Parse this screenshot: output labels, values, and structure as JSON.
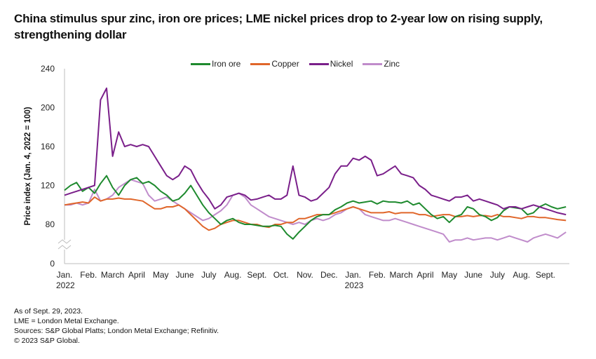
{
  "title": "China stimulus spur zinc, iron ore prices; LME nickel prices drop to 2-year low on rising supply, strengthening dollar",
  "footnotes": [
    "As of Sept. 29, 2023.",
    "LME = London Metal Exchange.",
    "Sources: S&P Global Platts; London Metal Exchange; Refinitiv.",
    "© 2023 S&P Global."
  ],
  "chart_data": {
    "type": "line",
    "title": "China stimulus spur zinc, iron ore prices; LME nickel prices drop to 2-year low on rising supply, strengthening dollar",
    "xlabel": "",
    "ylabel": "Price index (Jan. 4, 2022 = 100)",
    "y_ticks": [
      0,
      80,
      120,
      160,
      200,
      240
    ],
    "ylim": [
      0,
      240
    ],
    "y_axis_break": "between 0 and 80",
    "x_tick_labels": [
      {
        "label": "Jan.",
        "sub": "2022"
      },
      {
        "label": "Feb.",
        "sub": ""
      },
      {
        "label": "March",
        "sub": ""
      },
      {
        "label": "April",
        "sub": ""
      },
      {
        "label": "May",
        "sub": ""
      },
      {
        "label": "June",
        "sub": ""
      },
      {
        "label": "July",
        "sub": ""
      },
      {
        "label": "Aug.",
        "sub": ""
      },
      {
        "label": "Sept.",
        "sub": ""
      },
      {
        "label": "Oct.",
        "sub": ""
      },
      {
        "label": "Nov.",
        "sub": ""
      },
      {
        "label": "Dec.",
        "sub": ""
      },
      {
        "label": "Jan.",
        "sub": "2023"
      },
      {
        "label": "Feb.",
        "sub": ""
      },
      {
        "label": "March",
        "sub": ""
      },
      {
        "label": "April",
        "sub": ""
      },
      {
        "label": "May",
        "sub": ""
      },
      {
        "label": "June",
        "sub": ""
      },
      {
        "label": "July",
        "sub": ""
      },
      {
        "label": "Aug.",
        "sub": ""
      },
      {
        "label": "Sept.",
        "sub": ""
      }
    ],
    "x_months": 21,
    "x": [
      0,
      0.25,
      0.5,
      0.75,
      1,
      1.25,
      1.5,
      1.75,
      2,
      2.25,
      2.5,
      2.75,
      3,
      3.25,
      3.5,
      3.75,
      4,
      4.25,
      4.5,
      4.75,
      5,
      5.25,
      5.5,
      5.75,
      6,
      6.25,
      6.5,
      6.75,
      7,
      7.25,
      7.5,
      7.75,
      8,
      8.25,
      8.5,
      8.75,
      9,
      9.25,
      9.5,
      9.75,
      10,
      10.25,
      10.5,
      10.75,
      11,
      11.25,
      11.5,
      11.75,
      12,
      12.25,
      12.5,
      12.75,
      13,
      13.25,
      13.5,
      13.75,
      14,
      14.25,
      14.5,
      14.75,
      15,
      15.25,
      15.5,
      15.75,
      16,
      16.25,
      16.5,
      16.75,
      17,
      17.25,
      17.5,
      17.75,
      18,
      18.25,
      18.5,
      18.75,
      19,
      19.25,
      19.5,
      19.75,
      20,
      20.25,
      20.5,
      20.85
    ],
    "legend": [
      "Iron ore",
      "Copper",
      "Nickel",
      "Zinc"
    ],
    "legend_position": "top-center",
    "series": [
      {
        "name": "Iron ore",
        "color": "#1e8a2e",
        "values": [
          115,
          120,
          123,
          114,
          118,
          112,
          122,
          130,
          118,
          110,
          120,
          126,
          128,
          122,
          124,
          120,
          114,
          110,
          104,
          106,
          112,
          120,
          110,
          100,
          92,
          86,
          80,
          84,
          86,
          82,
          80,
          80,
          79,
          78,
          78,
          79,
          78,
          70,
          65,
          72,
          78,
          84,
          88,
          90,
          90,
          95,
          98,
          102,
          104,
          102,
          103,
          104,
          101,
          104,
          103,
          103,
          102,
          104,
          100,
          102,
          96,
          90,
          86,
          88,
          82,
          88,
          90,
          98,
          96,
          90,
          88,
          84,
          87,
          94,
          98,
          97,
          96,
          90,
          92,
          98,
          101,
          98,
          96,
          98
        ]
      },
      {
        "name": "Copper",
        "color": "#e0662a",
        "values": [
          100,
          101,
          102,
          103,
          102,
          108,
          104,
          106,
          106,
          107,
          106,
          106,
          105,
          104,
          100,
          96,
          96,
          98,
          98,
          100,
          96,
          90,
          84,
          78,
          74,
          76,
          80,
          82,
          84,
          84,
          82,
          80,
          80,
          78,
          77,
          80,
          80,
          82,
          82,
          86,
          86,
          88,
          90,
          90,
          90,
          92,
          94,
          96,
          98,
          96,
          94,
          92,
          92,
          92,
          93,
          91,
          92,
          92,
          92,
          90,
          90,
          88,
          89,
          90,
          90,
          88,
          88,
          89,
          88,
          89,
          89,
          88,
          90,
          88,
          88,
          87,
          86,
          88,
          88,
          87,
          87,
          86,
          85,
          84
        ]
      },
      {
        "name": "Nickel",
        "color": "#7a1f8a",
        "values": [
          110,
          112,
          114,
          116,
          118,
          120,
          208,
          220,
          150,
          175,
          160,
          162,
          160,
          162,
          160,
          150,
          140,
          130,
          126,
          130,
          140,
          136,
          124,
          114,
          106,
          96,
          100,
          108,
          110,
          112,
          110,
          105,
          106,
          108,
          110,
          106,
          106,
          110,
          140,
          110,
          108,
          104,
          106,
          112,
          118,
          132,
          140,
          140,
          148,
          146,
          150,
          146,
          130,
          132,
          136,
          140,
          132,
          130,
          128,
          120,
          116,
          110,
          108,
          106,
          104,
          108,
          108,
          110,
          104,
          106,
          104,
          102,
          100,
          96,
          98,
          98,
          96,
          98,
          100,
          98,
          96,
          94,
          92,
          90
        ]
      },
      {
        "name": "Zinc",
        "color": "#c08ccb",
        "values": [
          100,
          100,
          102,
          100,
          102,
          116,
          104,
          106,
          110,
          118,
          122,
          126,
          124,
          122,
          110,
          104,
          106,
          108,
          104,
          100,
          96,
          92,
          88,
          84,
          86,
          90,
          94,
          100,
          110,
          112,
          108,
          100,
          96,
          92,
          88,
          86,
          84,
          82,
          80,
          82,
          80,
          84,
          86,
          84,
          86,
          90,
          92,
          96,
          98,
          96,
          90,
          88,
          86,
          84,
          84,
          86,
          84,
          82,
          80,
          78,
          76,
          74,
          72,
          70,
          62,
          64,
          64,
          66,
          64,
          65,
          66,
          66,
          64,
          66,
          68,
          66,
          64,
          62,
          66,
          68,
          70,
          68,
          66,
          72
        ]
      }
    ]
  }
}
